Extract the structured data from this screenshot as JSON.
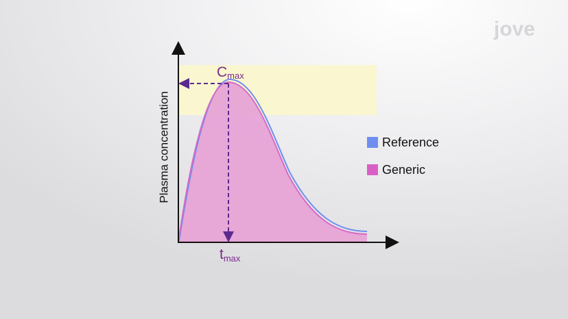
{
  "logo": "jove",
  "y_axis_label": "Plasma concentration",
  "cmax": {
    "symbol": "C",
    "subscript": "max"
  },
  "tmax": {
    "symbol": "t",
    "subscript": "max"
  },
  "legend": [
    {
      "label": "Reference"
    },
    {
      "label": "Generic"
    }
  ]
}
